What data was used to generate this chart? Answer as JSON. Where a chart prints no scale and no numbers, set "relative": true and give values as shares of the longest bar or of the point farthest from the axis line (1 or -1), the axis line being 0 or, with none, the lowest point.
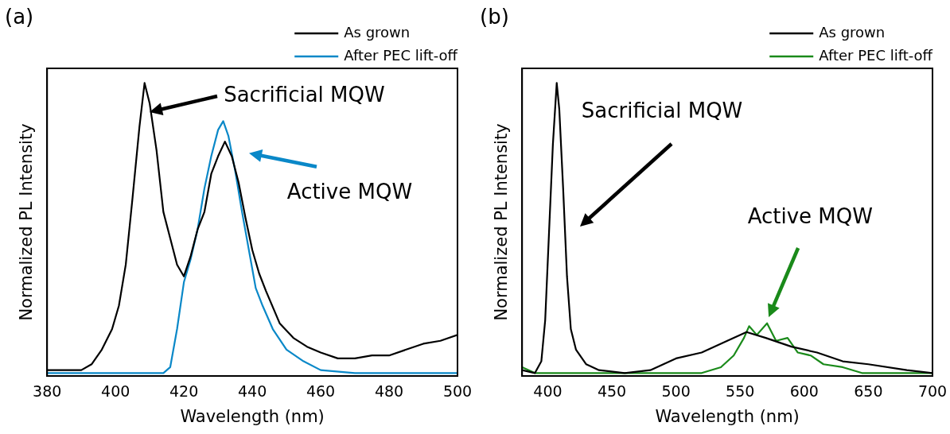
{
  "chart_data": [
    {
      "type": "line",
      "title": "(a)",
      "xlabel": "Wavelength (nm)",
      "ylabel": "Normalized PL Intensity",
      "relative": true,
      "legend": "top right",
      "xlim": [
        380,
        500
      ],
      "xticks": [
        380,
        400,
        420,
        440,
        460,
        480,
        500
      ],
      "annotations": [
        "Sacrificial MQW",
        "Active MQW"
      ],
      "series": [
        {
          "name": "As grown",
          "color": "#000000",
          "x": [
            380,
            390,
            393,
            396,
            399,
            401,
            403,
            405,
            407,
            408.5,
            410,
            412,
            414,
            416,
            418,
            420,
            422,
            424,
            426,
            428,
            430,
            432,
            434,
            436,
            438,
            440,
            442,
            444,
            448,
            452,
            456,
            460,
            465,
            470,
            475,
            480,
            485,
            490,
            495,
            500
          ],
          "values": [
            0.02,
            0.02,
            0.04,
            0.09,
            0.16,
            0.24,
            0.38,
            0.61,
            0.85,
            1.0,
            0.93,
            0.77,
            0.56,
            0.47,
            0.38,
            0.34,
            0.41,
            0.5,
            0.56,
            0.69,
            0.75,
            0.8,
            0.75,
            0.66,
            0.54,
            0.43,
            0.35,
            0.29,
            0.18,
            0.13,
            0.1,
            0.08,
            0.06,
            0.06,
            0.07,
            0.07,
            0.09,
            0.11,
            0.12,
            0.14
          ]
        },
        {
          "name": "After PEC lift-off",
          "color": "#0a88c8",
          "x": [
            380,
            400,
            414,
            416,
            418,
            420,
            422,
            424,
            426,
            428,
            430,
            431.5,
            433,
            435,
            437,
            439,
            441,
            443,
            446,
            450,
            455,
            460,
            470,
            500
          ],
          "values": [
            0.01,
            0.01,
            0.01,
            0.03,
            0.16,
            0.32,
            0.4,
            0.5,
            0.64,
            0.75,
            0.84,
            0.87,
            0.82,
            0.7,
            0.56,
            0.43,
            0.3,
            0.24,
            0.16,
            0.09,
            0.05,
            0.02,
            0.01,
            0.01
          ]
        }
      ]
    },
    {
      "type": "line",
      "title": "(b)",
      "xlabel": "Wavelength (nm)",
      "ylabel": "Normalized PL Intensity",
      "relative": true,
      "legend": "top right",
      "xlim": [
        380,
        700
      ],
      "xticks": [
        400,
        450,
        500,
        550,
        600,
        650,
        700
      ],
      "annotations": [
        "Sacrificial MQW",
        "Active MQW"
      ],
      "series": [
        {
          "name": "As grown",
          "color": "#000000",
          "x": [
            380,
            390,
            395,
            398,
            401,
            404,
            407,
            409,
            412,
            415,
            418,
            422,
            430,
            440,
            460,
            480,
            500,
            520,
            540,
            555,
            570,
            590,
            610,
            630,
            650,
            680,
            700
          ],
          "values": [
            0.02,
            0.01,
            0.05,
            0.19,
            0.49,
            0.79,
            1.0,
            0.91,
            0.64,
            0.34,
            0.16,
            0.09,
            0.04,
            0.02,
            0.01,
            0.02,
            0.06,
            0.08,
            0.12,
            0.15,
            0.13,
            0.1,
            0.08,
            0.05,
            0.04,
            0.02,
            0.01
          ]
        },
        {
          "name": "After PEC lift-off",
          "color": "#1a8a1a",
          "x": [
            380,
            390,
            450,
            500,
            520,
            535,
            545,
            553,
            557,
            563,
            571,
            578,
            587,
            595,
            605,
            615,
            630,
            645,
            660,
            700
          ],
          "values": [
            0.03,
            0.01,
            0.01,
            0.01,
            0.01,
            0.03,
            0.07,
            0.13,
            0.17,
            0.14,
            0.18,
            0.12,
            0.13,
            0.08,
            0.07,
            0.04,
            0.03,
            0.01,
            0.01,
            0.01
          ]
        }
      ]
    }
  ]
}
